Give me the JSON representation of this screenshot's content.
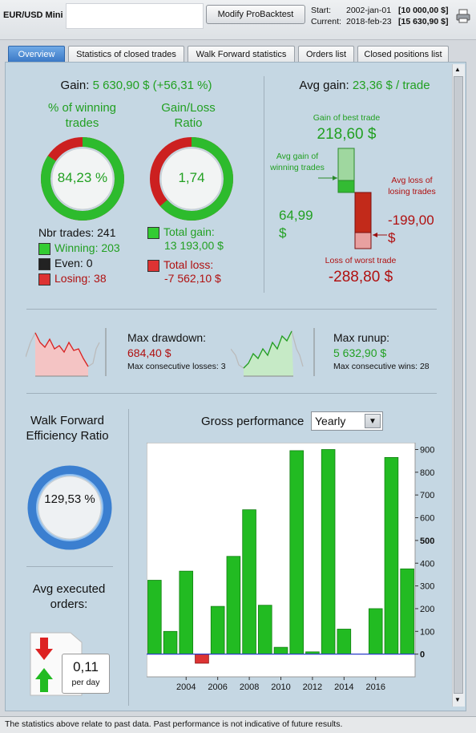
{
  "header": {
    "instrument": "EUR/USD Mini ..",
    "modify_label": "Modify ProBacktest",
    "start_label": "Start:",
    "start_date": "2002-jan-01",
    "start_value": "[10 000,00 $]",
    "current_label": "Current:",
    "current_date": "2018-feb-23",
    "current_value": "[15 630,90 $]"
  },
  "tabs": [
    "Overview",
    "Statistics of closed trades",
    "Walk Forward statistics",
    "Orders list",
    "Closed positions list"
  ],
  "gain": {
    "label": "Gain:",
    "value": "5 630,90 $ (+56,31 %)"
  },
  "winning": {
    "title": "% of winning trades",
    "value": "84,23 %",
    "fraction": 0.8423
  },
  "ratio": {
    "title": "Gain/Loss Ratio",
    "value": "1,74",
    "fraction": 0.635
  },
  "trades": {
    "nbr": "Nbr trades: 241",
    "winning": "Winning: 203",
    "even": "Even: 0",
    "losing": "Losing: 38"
  },
  "totals": {
    "gain_label": "Total gain:",
    "gain_value": "13 193,00 $",
    "loss_label": "Total loss:",
    "loss_value": "-7 562,10 $"
  },
  "avg": {
    "label": "Avg gain:",
    "value": "23,36 $ / trade",
    "best_label": "Gain of best trade",
    "best_value": "218,60 $",
    "avg_win_label": "Avg gain of winning trades",
    "avg_win_value": "64,99 $",
    "avg_loss_label": "Avg loss of losing trades",
    "avg_loss_value": "-199,00 $",
    "worst_label": "Loss of worst trade",
    "worst_value": "-288,80 $"
  },
  "drawdown": {
    "label": "Max drawdown:",
    "value": "684,40 $",
    "consec": "Max consecutive losses: 3"
  },
  "runup": {
    "label": "Max runup:",
    "value": "5 632,90 $",
    "consec": "Max consecutive wins: 28"
  },
  "wfe": {
    "title": "Walk Forward Efficiency Ratio",
    "value": "129,53 %"
  },
  "orders": {
    "title": "Avg executed orders:",
    "value": "0,11",
    "unit": "per day"
  },
  "perf": {
    "title": "Gross performance",
    "period": "Yearly"
  },
  "footer": "The statistics above relate to past data. Past performance is not indicative of future results.",
  "colors": {
    "green": "#22a022",
    "red": "#c01818",
    "tab_active": "#3b79c6"
  },
  "chart_data": {
    "type": "bar",
    "title": "Gross performance",
    "x": [
      2002,
      2003,
      2004,
      2005,
      2006,
      2007,
      2008,
      2009,
      2010,
      2011,
      2012,
      2013,
      2014,
      2015,
      2016,
      2017,
      2018
    ],
    "values": [
      325,
      100,
      365,
      -40,
      210,
      430,
      635,
      215,
      30,
      895,
      10,
      900,
      110,
      0,
      200,
      865,
      375
    ],
    "ylim": [
      -100,
      930
    ],
    "yticks": [
      0,
      100,
      200,
      300,
      400,
      500,
      600,
      700,
      800,
      900
    ],
    "xticks": [
      2004,
      2006,
      2008,
      2010,
      2012,
      2014,
      2016
    ]
  }
}
